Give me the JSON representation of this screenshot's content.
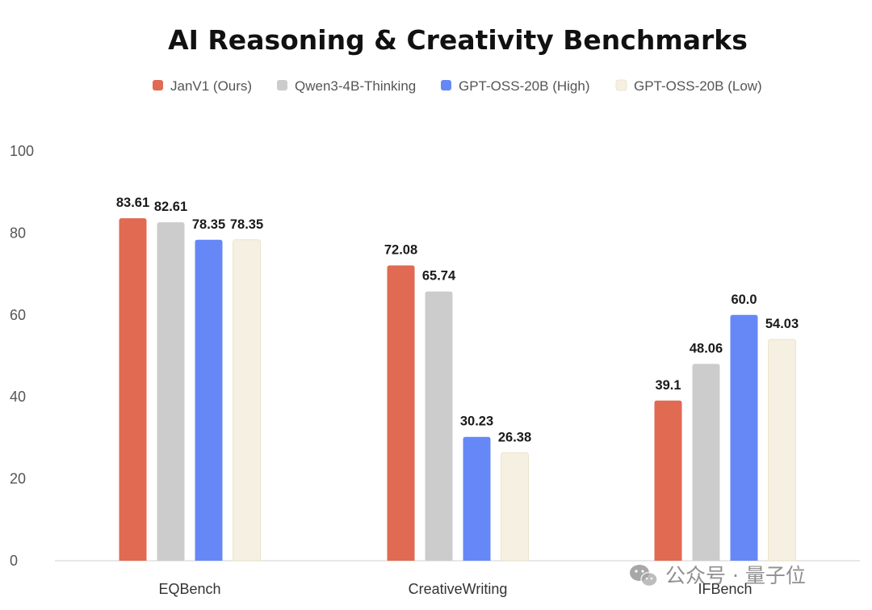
{
  "chart_data": {
    "type": "bar",
    "title": "AI Reasoning & Creativity Benchmarks",
    "xlabel": "",
    "ylabel": "",
    "categories": [
      "EQBench",
      "CreativeWriting",
      "IFBench"
    ],
    "series": [
      {
        "name": "JanV1 (Ours)",
        "color": "#e06a52",
        "values": [
          83.61,
          72.08,
          39.1
        ],
        "labels": [
          "83.61",
          "72.08",
          "39.1"
        ]
      },
      {
        "name": "Qwen3-4B-Thinking",
        "color": "#cccccc",
        "values": [
          82.61,
          65.74,
          48.06
        ],
        "labels": [
          "82.61",
          "65.74",
          "48.06"
        ]
      },
      {
        "name": "GPT-OSS-20B (High)",
        "color": "#6688f7",
        "values": [
          78.35,
          30.23,
          60.0
        ],
        "labels": [
          "78.35",
          "30.23",
          "60.0"
        ]
      },
      {
        "name": "GPT-OSS-20B (Low)",
        "color": "#f5f0e1",
        "values": [
          78.35,
          26.38,
          54.03
        ],
        "labels": [
          "78.35",
          "26.38",
          "54.03"
        ]
      }
    ],
    "ylim": [
      0,
      100
    ],
    "yticks": [
      "0",
      "20",
      "40",
      "60",
      "80",
      "100"
    ],
    "grid": false,
    "legend_position": "top"
  },
  "watermark": {
    "text": "公众号 · 量子位",
    "icon": "wechat-icon"
  }
}
